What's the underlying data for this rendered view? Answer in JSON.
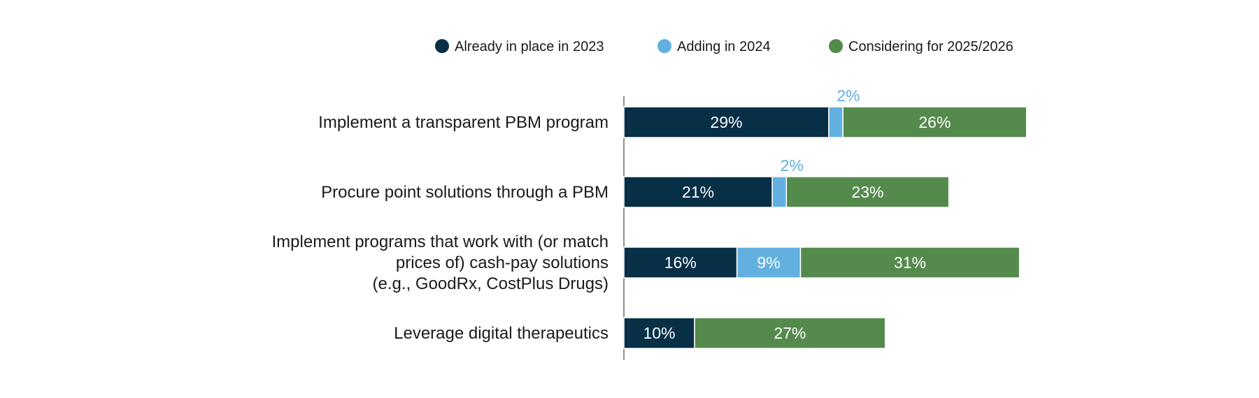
{
  "chart_data": {
    "type": "bar",
    "orientation": "horizontal",
    "stacked": true,
    "categories": [
      [
        "Implement a transparent PBM program"
      ],
      [
        "Procure point solutions through a PBM"
      ],
      [
        "Implement programs that work with (or match",
        "prices of) cash-pay solutions",
        "(e.g., GoodRx, CostPlus Drugs)"
      ],
      [
        "Leverage digital therapeutics"
      ]
    ],
    "series": [
      {
        "name": "Already in place in 2023",
        "color": "#072f45",
        "values": [
          29,
          21,
          16,
          10
        ],
        "labels": [
          "29%",
          "21%",
          "16%",
          "10%"
        ]
      },
      {
        "name": "Adding in 2024",
        "color": "#62b0e0",
        "values": [
          2,
          2,
          9,
          0
        ],
        "labels": [
          "2%",
          "2%",
          "9%",
          ""
        ]
      },
      {
        "name": "Considering for 2025/2026",
        "color": "#548a4c",
        "values": [
          26,
          23,
          31,
          27
        ],
        "labels": [
          "26%",
          "23%",
          "31%",
          "27%"
        ]
      }
    ],
    "legend_position": "top",
    "xlim": [
      0,
      60
    ],
    "grid": false
  }
}
